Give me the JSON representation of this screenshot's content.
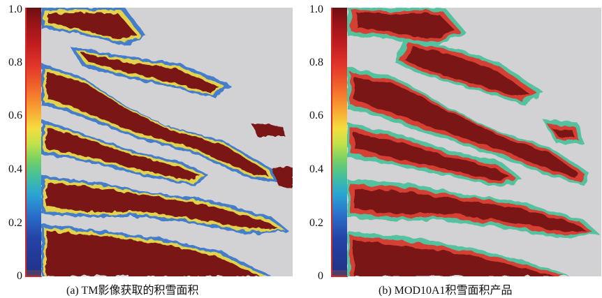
{
  "panels": [
    {
      "caption": "(a) TM影像获取的积雪面积",
      "y_ticks": [
        "1.0",
        "0.8",
        "0.6",
        "0.4",
        "0.2",
        "0"
      ]
    },
    {
      "caption": "(b) MOD10A1积雪面积产品",
      "y_ticks": [
        "1.0",
        "0.8",
        "0.6",
        "0.4",
        "0.2",
        "0"
      ]
    }
  ],
  "colorbar": {
    "range": [
      0,
      1
    ],
    "colors": {
      "high": "#6b0f12",
      "mid_high": "#e2352a",
      "mid": "#f5dd3e",
      "mid_low": "#45c09a",
      "low": "#22338a"
    }
  },
  "map": {
    "background_color": "#d2d2d4",
    "snow_color": "#7a1212",
    "edge_colors": [
      "#e2352a",
      "#f5dd3e",
      "#45c09a",
      "#2a6fcb"
    ]
  }
}
